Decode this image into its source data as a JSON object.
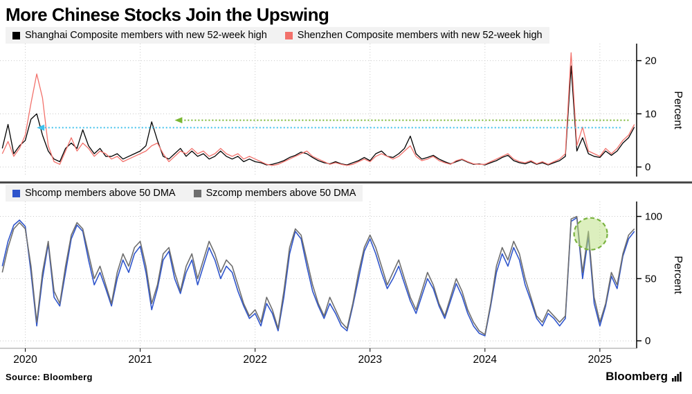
{
  "title": "More Chinese Stocks Join the Upswing",
  "source_label": "Source: Bloomberg",
  "brand": "Bloomberg",
  "chart_data": [
    {
      "type": "line",
      "panel": "top",
      "ylabel": "Percent",
      "yticks": [
        0,
        10,
        20
      ],
      "ylim": [
        -1.8,
        23.2
      ],
      "xlim": [
        2019.78,
        2025.32
      ],
      "xticks": [
        2020,
        2021,
        2022,
        2023,
        2024,
        2025
      ],
      "x_start": 2019.8,
      "x_step": 0.05,
      "grid": true,
      "legend_position": "top",
      "series": [
        {
          "name": "Shanghai Composite members with new 52-week high",
          "color": "#000000",
          "width": 1.3,
          "values": [
            3.5,
            8,
            2.5,
            4,
            5,
            9,
            10,
            6,
            3,
            1.5,
            1,
            3.5,
            4.5,
            3.5,
            7,
            4,
            2.5,
            3.5,
            2,
            2,
            2.5,
            1.5,
            2,
            2.5,
            3,
            4,
            8.5,
            5,
            2,
            1.5,
            2.5,
            3.5,
            2,
            3,
            2,
            2.5,
            1.5,
            2,
            3,
            2,
            1.5,
            2,
            1,
            1.5,
            1,
            0.8,
            0.4,
            0.5,
            0.8,
            1.2,
            1.8,
            2.2,
            2.8,
            2.5,
            1.8,
            1.2,
            0.8,
            0.6,
            1,
            0.6,
            0.4,
            0.8,
            1.2,
            1.8,
            1.2,
            2.5,
            3,
            2,
            1.8,
            2.5,
            3.5,
            5.8,
            2.5,
            1.5,
            1.8,
            2.2,
            1.5,
            1,
            0.6,
            1,
            1.4,
            0.9,
            0.5,
            0.6,
            0.4,
            0.8,
            1.2,
            1.8,
            2.2,
            1.2,
            0.8,
            0.6,
            1,
            0.5,
            0.8,
            0.4,
            0.8,
            1.2,
            2,
            19,
            3,
            5.5,
            2.5,
            2,
            1.8,
            3,
            2.2,
            3,
            4.5,
            5.5,
            7.5
          ]
        },
        {
          "name": "Shenzhen Composite members with new 52-week high",
          "color": "#f2716b",
          "width": 1.3,
          "values": [
            2.5,
            4.8,
            2,
            3.5,
            6,
            12,
            17.5,
            13,
            4,
            1,
            0.5,
            3,
            5.5,
            3,
            4.5,
            3.5,
            2,
            3,
            2.5,
            1.5,
            2,
            1,
            1.5,
            2,
            2.5,
            3,
            4,
            4.5,
            2.5,
            1,
            2,
            3,
            2.5,
            3.5,
            2.5,
            3,
            2,
            2.5,
            3.5,
            2.5,
            2,
            2.5,
            1.5,
            2,
            1.5,
            1,
            0.5,
            0.3,
            0.5,
            1,
            1.5,
            2,
            2.5,
            3,
            2,
            1.5,
            1,
            0.5,
            0.8,
            0.5,
            0.3,
            0.5,
            1,
            1.5,
            1,
            2,
            2.5,
            2,
            1.5,
            2,
            3,
            4,
            2,
            1.2,
            1.5,
            2,
            1.2,
            0.8,
            0.5,
            1.2,
            1.5,
            1,
            0.6,
            0.5,
            0.5,
            1,
            1.5,
            2,
            2.5,
            1.5,
            1,
            0.8,
            1.2,
            0.6,
            1,
            0.5,
            1,
            1.5,
            2.5,
            21.5,
            4,
            7.5,
            3,
            2.5,
            2,
            3.5,
            2.5,
            3.5,
            5,
            6,
            8
          ]
        }
      ],
      "annotations": [
        {
          "type": "arrow-left",
          "color": "#7ab733",
          "y": 8.8,
          "x_from": 2025.25,
          "x_to": 2021.3
        },
        {
          "type": "arrow-left",
          "color": "#3fc1ec",
          "y": 7.4,
          "x_from": 2025.18,
          "x_to": 2020.1
        }
      ]
    },
    {
      "type": "line",
      "panel": "bottom",
      "ylabel": "Percent",
      "yticks": [
        0,
        50,
        100
      ],
      "ylim": [
        -6,
        112
      ],
      "xlim": [
        2019.78,
        2025.32
      ],
      "xticks": [
        2020,
        2021,
        2022,
        2023,
        2024,
        2025
      ],
      "x_start": 2019.8,
      "x_step": 0.05,
      "grid": true,
      "legend_position": "top",
      "series": [
        {
          "name": "Shcomp members above 50 DMA",
          "color": "#2f55cc",
          "width": 1.6,
          "values": [
            60,
            80,
            93,
            97,
            92,
            55,
            12,
            50,
            78,
            35,
            28,
            55,
            82,
            93,
            88,
            65,
            45,
            55,
            42,
            28,
            50,
            65,
            55,
            70,
            76,
            55,
            25,
            42,
            65,
            72,
            50,
            38,
            55,
            65,
            45,
            60,
            75,
            65,
            50,
            60,
            55,
            40,
            28,
            18,
            22,
            12,
            30,
            22,
            8,
            35,
            70,
            88,
            82,
            60,
            40,
            28,
            18,
            30,
            22,
            12,
            8,
            28,
            50,
            72,
            82,
            70,
            55,
            42,
            50,
            60,
            46,
            32,
            22,
            36,
            50,
            42,
            28,
            18,
            32,
            46,
            36,
            22,
            12,
            6,
            4,
            28,
            55,
            70,
            60,
            75,
            65,
            45,
            32,
            18,
            12,
            22,
            18,
            12,
            18,
            96,
            99,
            50,
            84,
            30,
            12,
            28,
            52,
            42,
            68,
            82,
            88
          ]
        },
        {
          "name": "Szcomp members above 50 DMA",
          "color": "#6e6e6e",
          "width": 1.6,
          "values": [
            55,
            75,
            90,
            95,
            90,
            60,
            15,
            55,
            80,
            40,
            30,
            60,
            85,
            95,
            90,
            70,
            50,
            60,
            45,
            30,
            55,
            70,
            60,
            75,
            80,
            60,
            30,
            45,
            70,
            75,
            55,
            40,
            60,
            70,
            50,
            65,
            80,
            70,
            55,
            65,
            60,
            45,
            30,
            20,
            25,
            15,
            35,
            25,
            10,
            40,
            75,
            90,
            85,
            65,
            45,
            30,
            20,
            35,
            25,
            15,
            10,
            30,
            55,
            75,
            85,
            75,
            60,
            45,
            55,
            65,
            50,
            35,
            25,
            40,
            55,
            45,
            30,
            20,
            35,
            50,
            40,
            25,
            15,
            8,
            5,
            30,
            60,
            75,
            65,
            80,
            70,
            50,
            35,
            20,
            15,
            25,
            20,
            15,
            20,
            98,
            100,
            55,
            88,
            35,
            15,
            30,
            55,
            45,
            70,
            85,
            90
          ]
        }
      ],
      "annotations": [
        {
          "type": "circle",
          "x": 2024.92,
          "y": 86,
          "color": "#b9df7d",
          "stroke": "#79b23f"
        }
      ]
    }
  ]
}
